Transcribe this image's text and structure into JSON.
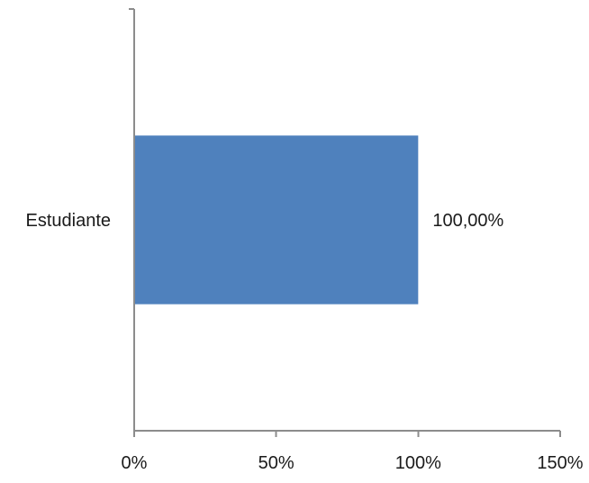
{
  "chart_data": {
    "type": "bar",
    "orientation": "horizontal",
    "categories": [
      "Estudiante"
    ],
    "values": [
      100.0
    ],
    "data_labels": [
      "100,00%"
    ],
    "xlim": [
      0,
      150
    ],
    "xticks": [
      0,
      50,
      100,
      150
    ],
    "xtick_labels": [
      "0%",
      "50%",
      "100%",
      "150%"
    ],
    "title": "",
    "xlabel": "",
    "ylabel": "",
    "grid": false,
    "legend": "none",
    "bar_color": "#4f81bd",
    "axis_color": "#8c8c8c"
  }
}
